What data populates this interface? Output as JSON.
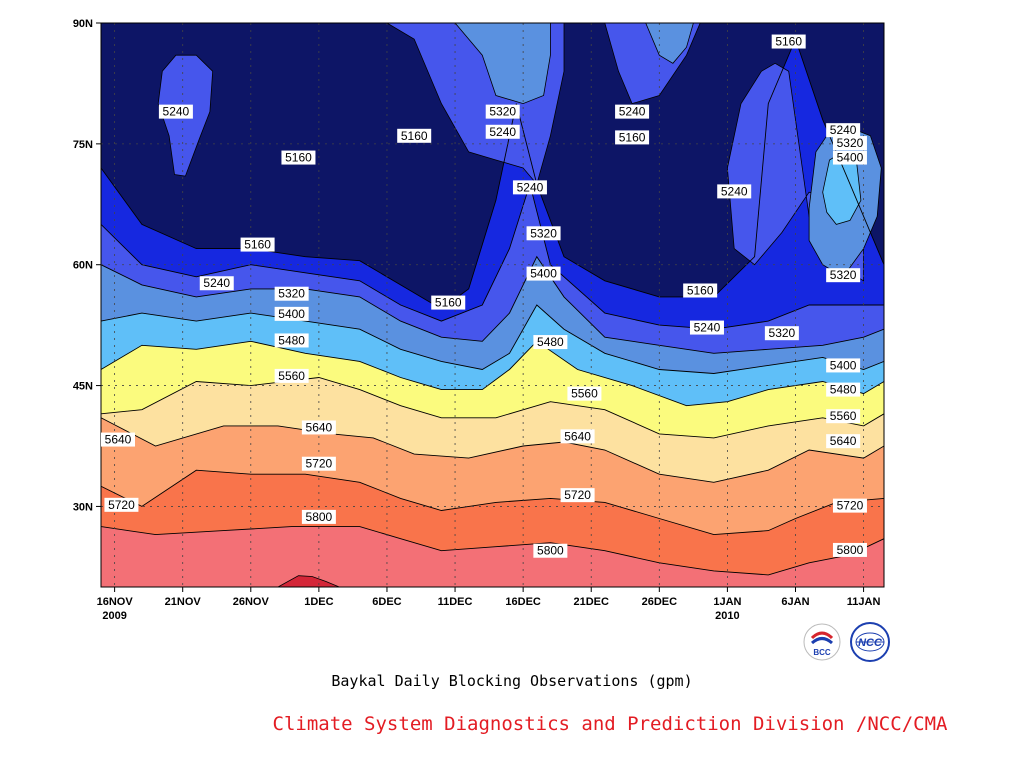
{
  "chart_data": {
    "type": "contour",
    "title": "",
    "caption": "Baykal Daily Blocking Observations (gpm)",
    "x_tick_labels": [
      {
        "label": "16NOV",
        "year": "2009"
      },
      {
        "label": "21NOV",
        "year": ""
      },
      {
        "label": "26NOV",
        "year": ""
      },
      {
        "label": "1DEC",
        "year": ""
      },
      {
        "label": "6DEC",
        "year": ""
      },
      {
        "label": "11DEC",
        "year": ""
      },
      {
        "label": "16DEC",
        "year": ""
      },
      {
        "label": "21DEC",
        "year": ""
      },
      {
        "label": "26DEC",
        "year": ""
      },
      {
        "label": "1JAN",
        "year": "2010"
      },
      {
        "label": "6JAN",
        "year": ""
      },
      {
        "label": "11JAN",
        "year": ""
      }
    ],
    "y_tick_labels": [
      "90N",
      "75N",
      "60N",
      "45N",
      "30N"
    ],
    "y_tick_values": [
      90,
      75,
      60,
      45,
      30
    ],
    "ylim": [
      20,
      90
    ],
    "x_days_range": [
      -1,
      56.5
    ],
    "grid": true,
    "contour_levels": [
      5160,
      5240,
      5320,
      5400,
      5480,
      5560,
      5640,
      5720,
      5800
    ],
    "fill_colors": {
      "lt5160": "#0d1566",
      "5160": "#1628e0",
      "5240": "#4656ec",
      "5320": "#5a91e0",
      "5400": "#5fbff8",
      "5480": "#fbfb7e",
      "5560": "#fde1a0",
      "5640": "#fca371",
      "5720": "#f9744b",
      "5800": "#f37076",
      "5880": "#d42638"
    },
    "contour_lines": [
      {
        "level": 5800,
        "points": [
          [
            -1,
            27.5
          ],
          [
            3,
            26.5
          ],
          [
            8,
            27
          ],
          [
            13,
            27.5
          ],
          [
            18,
            27.5
          ],
          [
            21,
            26
          ],
          [
            24,
            24.5
          ],
          [
            28,
            25
          ],
          [
            32,
            25.5
          ],
          [
            36,
            24.5
          ],
          [
            40,
            23
          ],
          [
            44,
            22
          ],
          [
            48,
            21.5
          ],
          [
            51,
            23
          ],
          [
            54,
            24
          ],
          [
            56.5,
            26
          ]
        ]
      },
      {
        "level": 5720,
        "points": [
          [
            -1,
            32.5
          ],
          [
            2,
            30
          ],
          [
            6,
            34.5
          ],
          [
            10,
            34
          ],
          [
            14,
            34
          ],
          [
            18,
            33
          ],
          [
            21,
            31
          ],
          [
            24,
            29.5
          ],
          [
            28,
            30.5
          ],
          [
            32,
            31
          ],
          [
            36,
            30.5
          ],
          [
            40,
            28.5
          ],
          [
            44,
            26.5
          ],
          [
            48,
            27
          ],
          [
            50,
            28.5
          ],
          [
            53,
            30.5
          ],
          [
            56.5,
            31
          ]
        ]
      },
      {
        "level": 5640,
        "points": [
          [
            -1,
            41
          ],
          [
            3,
            37.5
          ],
          [
            8,
            40
          ],
          [
            12,
            40
          ],
          [
            16,
            39
          ],
          [
            19,
            38.5
          ],
          [
            22,
            36.5
          ],
          [
            26,
            36
          ],
          [
            30,
            37.5
          ],
          [
            33,
            38
          ],
          [
            36,
            37
          ],
          [
            40,
            34
          ],
          [
            44,
            33
          ],
          [
            48,
            34.5
          ],
          [
            51,
            37
          ],
          [
            55,
            36
          ],
          [
            56.5,
            37.5
          ]
        ]
      },
      {
        "level": 5560,
        "points": [
          [
            -1,
            41.5
          ],
          [
            2,
            42
          ],
          [
            6,
            45.5
          ],
          [
            10,
            45
          ],
          [
            15,
            46
          ],
          [
            18,
            44.5
          ],
          [
            21,
            42.5
          ],
          [
            24,
            41
          ],
          [
            28,
            41
          ],
          [
            32,
            43
          ],
          [
            36,
            42
          ],
          [
            40,
            39
          ],
          [
            44,
            38.5
          ],
          [
            48,
            40
          ],
          [
            52,
            41
          ],
          [
            55,
            40
          ],
          [
            56.5,
            41.5
          ]
        ]
      },
      {
        "level": 5480,
        "points": [
          [
            -1,
            47
          ],
          [
            2,
            50
          ],
          [
            6,
            49.5
          ],
          [
            10,
            50.5
          ],
          [
            14,
            49
          ],
          [
            18,
            48
          ],
          [
            21,
            46
          ],
          [
            24,
            44.5
          ],
          [
            27,
            44.5
          ],
          [
            29,
            47
          ],
          [
            31,
            50.5
          ],
          [
            34,
            47
          ],
          [
            38,
            45
          ],
          [
            42,
            42.5
          ],
          [
            45,
            43
          ],
          [
            48,
            44.5
          ],
          [
            52,
            45.5
          ],
          [
            55,
            44
          ],
          [
            56.5,
            45.5
          ]
        ]
      },
      {
        "level": 5400,
        "points": [
          [
            -1,
            53
          ],
          [
            2,
            54
          ],
          [
            6,
            53
          ],
          [
            10,
            54
          ],
          [
            14,
            53
          ],
          [
            18,
            52
          ],
          [
            21,
            49.5
          ],
          [
            24,
            48
          ],
          [
            27,
            47
          ],
          [
            29,
            49
          ],
          [
            31,
            55
          ],
          [
            33,
            52
          ],
          [
            36,
            49
          ],
          [
            40,
            47
          ],
          [
            44,
            46.5
          ],
          [
            48,
            47.5
          ],
          [
            52,
            48.5
          ],
          [
            55,
            47
          ],
          [
            56.5,
            48
          ]
        ]
      },
      {
        "level": 5320,
        "points": [
          [
            -1,
            60
          ],
          [
            2,
            57.5
          ],
          [
            6,
            56
          ],
          [
            10,
            57
          ],
          [
            14,
            57
          ],
          [
            18,
            56
          ],
          [
            21,
            53
          ],
          [
            24,
            51
          ],
          [
            27,
            50.5
          ],
          [
            29,
            54
          ],
          [
            31,
            61
          ],
          [
            33,
            56
          ],
          [
            36,
            51
          ],
          [
            40,
            50
          ],
          [
            44,
            49
          ],
          [
            48,
            49.5
          ],
          [
            52,
            50
          ],
          [
            55,
            51
          ],
          [
            56.5,
            52
          ]
        ]
      },
      {
        "level": 5240,
        "points": [
          [
            -1,
            65
          ],
          [
            2,
            60
          ],
          [
            6,
            58.5
          ],
          [
            10,
            60
          ],
          [
            14,
            59
          ],
          [
            18,
            58
          ],
          [
            21,
            55
          ],
          [
            24,
            53
          ],
          [
            27,
            55
          ],
          [
            29,
            62
          ],
          [
            30.5,
            70
          ],
          [
            32,
            60
          ],
          [
            36,
            54
          ],
          [
            40,
            52.5
          ],
          [
            44,
            52
          ],
          [
            48,
            53
          ],
          [
            51,
            55
          ],
          [
            53,
            55
          ],
          [
            56.5,
            55
          ]
        ]
      },
      {
        "level": 5160,
        "points": [
          [
            -1,
            72
          ],
          [
            2,
            65
          ],
          [
            6,
            62
          ],
          [
            10,
            62
          ],
          [
            14,
            61
          ],
          [
            18,
            60.5
          ],
          [
            21,
            57.5
          ],
          [
            24,
            54.5
          ],
          [
            26,
            57
          ],
          [
            28,
            68
          ],
          [
            29.5,
            80
          ],
          [
            31,
            70
          ],
          [
            33,
            61
          ],
          [
            36,
            58
          ],
          [
            40,
            56
          ],
          [
            44,
            56
          ],
          [
            47,
            61
          ],
          [
            48,
            80
          ],
          [
            50,
            88
          ],
          [
            52,
            78
          ],
          [
            54,
            70
          ],
          [
            56.5,
            60
          ]
        ]
      }
    ],
    "contour_labels": [
      {
        "text": "5160",
        "x": 13.5,
        "y": 73.3
      },
      {
        "text": "5160",
        "x": 10.5,
        "y": 62.5
      },
      {
        "text": "5160",
        "x": 22,
        "y": 76
      },
      {
        "text": "5160",
        "x": 24.5,
        "y": 55.3
      },
      {
        "text": "5160",
        "x": 38,
        "y": 75.8
      },
      {
        "text": "5160",
        "x": 43,
        "y": 56.8
      },
      {
        "text": "5160",
        "x": 49.5,
        "y": 87.7
      },
      {
        "text": "5240",
        "x": 4.5,
        "y": 79
      },
      {
        "text": "5240",
        "x": 7.5,
        "y": 57.7
      },
      {
        "text": "5240",
        "x": 28.5,
        "y": 76.5
      },
      {
        "text": "5240",
        "x": 30.5,
        "y": 69.6
      },
      {
        "text": "5240",
        "x": 38,
        "y": 79
      },
      {
        "text": "5240",
        "x": 45.5,
        "y": 69.1
      },
      {
        "text": "5240",
        "x": 43.5,
        "y": 52.2
      },
      {
        "text": "5240",
        "x": 53.5,
        "y": 76.7
      },
      {
        "text": "5320",
        "x": 28.5,
        "y": 79
      },
      {
        "text": "5320",
        "x": 31.5,
        "y": 63.9
      },
      {
        "text": "5320",
        "x": 13,
        "y": 56.4
      },
      {
        "text": "5320",
        "x": 49,
        "y": 51.5
      },
      {
        "text": "5320",
        "x": 54,
        "y": 75.1
      },
      {
        "text": "5320",
        "x": 53.5,
        "y": 58.7
      },
      {
        "text": "5400",
        "x": 54,
        "y": 73.3
      },
      {
        "text": "5400",
        "x": 13,
        "y": 53.9
      },
      {
        "text": "5400",
        "x": 31.5,
        "y": 58.9
      },
      {
        "text": "5400",
        "x": 53.5,
        "y": 47.5
      },
      {
        "text": "5480",
        "x": 13,
        "y": 50.6
      },
      {
        "text": "5480",
        "x": 32,
        "y": 50.4
      },
      {
        "text": "5480",
        "x": 53.5,
        "y": 44.5
      },
      {
        "text": "5560",
        "x": 13,
        "y": 46.2
      },
      {
        "text": "5560",
        "x": 34.5,
        "y": 44
      },
      {
        "text": "5560",
        "x": 53.5,
        "y": 41.2
      },
      {
        "text": "5640",
        "x": -0.5,
        "y": 38.3
      },
      {
        "text": "5640",
        "x": 15,
        "y": 39.8
      },
      {
        "text": "5640",
        "x": 34,
        "y": 38.7
      },
      {
        "text": "5640",
        "x": 53.5,
        "y": 38.1
      },
      {
        "text": "5720",
        "x": 0.5,
        "y": 30.2
      },
      {
        "text": "5720",
        "x": 15,
        "y": 35.3
      },
      {
        "text": "5720",
        "x": 34,
        "y": 31.4
      },
      {
        "text": "5720",
        "x": 54,
        "y": 30.1
      },
      {
        "text": "5800",
        "x": 15,
        "y": 28.7
      },
      {
        "text": "5800",
        "x": 32,
        "y": 24.5
      },
      {
        "text": "5800",
        "x": 54,
        "y": 24.6
      }
    ]
  },
  "branding": {
    "caption": "Baykal Daily Blocking Observations (gpm)",
    "credit": "Climate System Diagnostics and Prediction Division /NCC/CMA",
    "logo_left_text": "BCC",
    "logo_right_text": "NCC"
  }
}
